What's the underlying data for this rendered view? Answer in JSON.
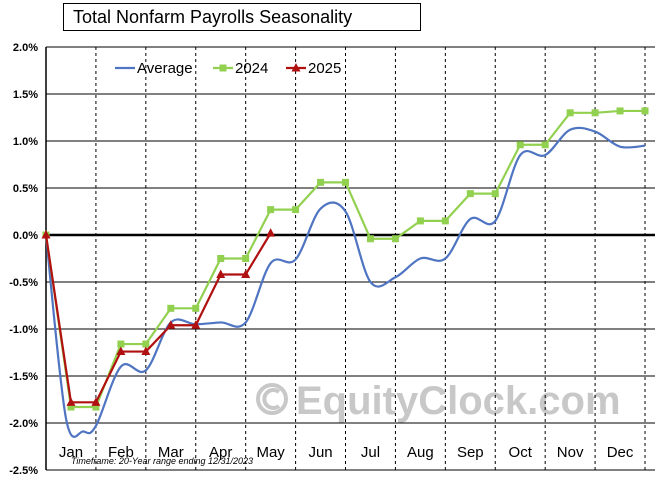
{
  "title": "Total Nonfarm Payrolls Seasonality",
  "footnote": "Timeframe: 20-Year range ending 12/31/2023",
  "watermark": "EquityClock.com",
  "watermark_icon": "copyright-icon",
  "chart_data": {
    "type": "line",
    "title": "Total Nonfarm Payrolls Seasonality",
    "xlabel": "",
    "ylabel": "",
    "x_range": [
      0,
      12.2
    ],
    "ylim": [
      -2.5,
      2.0
    ],
    "y_ticks": [
      2.0,
      1.5,
      1.0,
      0.5,
      0.0,
      -0.5,
      -1.0,
      -1.5,
      -2.0,
      -2.5
    ],
    "y_tick_labels": [
      "2.0%",
      "1.5%",
      "1.0%",
      "0.5%",
      "0.0%",
      "-0.5%",
      "-1.0%",
      "-1.5%",
      "-2.0%",
      "-2.5%"
    ],
    "months": [
      "Jan",
      "Feb",
      "Mar",
      "Apr",
      "May",
      "Jun",
      "Jul",
      "Aug",
      "Sep",
      "Oct",
      "Nov",
      "Dec"
    ],
    "grid": "vertical dashed at month boundaries, horizontal solid",
    "legend_position": "top-left",
    "series": [
      {
        "name": "Average",
        "color": "#4f74c1",
        "marker": "none",
        "smooth": true,
        "points": [
          [
            0.0,
            0.0
          ],
          [
            0.4,
            -1.95
          ],
          [
            0.75,
            -2.09
          ],
          [
            1.0,
            -2.03
          ],
          [
            1.5,
            -1.4
          ],
          [
            2.0,
            -1.44
          ],
          [
            2.5,
            -0.93
          ],
          [
            3.0,
            -0.95
          ],
          [
            3.5,
            -0.93
          ],
          [
            4.0,
            -0.93
          ],
          [
            4.5,
            -0.3
          ],
          [
            5.0,
            -0.26
          ],
          [
            5.5,
            0.28
          ],
          [
            6.0,
            0.25
          ],
          [
            6.5,
            -0.5
          ],
          [
            7.0,
            -0.45
          ],
          [
            7.5,
            -0.25
          ],
          [
            8.0,
            -0.25
          ],
          [
            8.5,
            0.17
          ],
          [
            9.0,
            0.15
          ],
          [
            9.5,
            0.85
          ],
          [
            10.0,
            0.85
          ],
          [
            10.5,
            1.12
          ],
          [
            11.0,
            1.1
          ],
          [
            11.5,
            0.94
          ],
          [
            12.0,
            0.95
          ]
        ]
      },
      {
        "name": "2024",
        "color": "#92d050",
        "marker": "square",
        "smooth": false,
        "points": [
          [
            0.0,
            0.0
          ],
          [
            0.5,
            -1.83
          ],
          [
            1.0,
            -1.83
          ],
          [
            1.5,
            -1.16
          ],
          [
            2.0,
            -1.16
          ],
          [
            2.5,
            -0.78
          ],
          [
            3.0,
            -0.78
          ],
          [
            3.5,
            -0.25
          ],
          [
            4.0,
            -0.25
          ],
          [
            4.5,
            0.27
          ],
          [
            5.0,
            0.27
          ],
          [
            5.5,
            0.56
          ],
          [
            6.0,
            0.56
          ],
          [
            6.5,
            -0.04
          ],
          [
            7.0,
            -0.04
          ],
          [
            7.5,
            0.15
          ],
          [
            8.0,
            0.15
          ],
          [
            8.5,
            0.44
          ],
          [
            9.0,
            0.44
          ],
          [
            9.5,
            0.96
          ],
          [
            10.0,
            0.96
          ],
          [
            10.5,
            1.3
          ],
          [
            11.0,
            1.3
          ],
          [
            11.5,
            1.32
          ],
          [
            12.0,
            1.32
          ]
        ]
      },
      {
        "name": "2025",
        "color": "#b01010",
        "marker": "triangle",
        "smooth": false,
        "points": [
          [
            0.0,
            0.0
          ],
          [
            0.5,
            -1.78
          ],
          [
            1.0,
            -1.78
          ],
          [
            1.5,
            -1.24
          ],
          [
            2.0,
            -1.24
          ],
          [
            2.5,
            -0.96
          ],
          [
            3.0,
            -0.96
          ],
          [
            3.5,
            -0.42
          ],
          [
            4.0,
            -0.42
          ],
          [
            4.5,
            0.02
          ]
        ]
      }
    ]
  }
}
